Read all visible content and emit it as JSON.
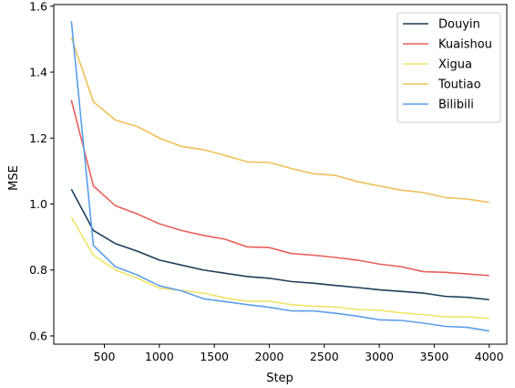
{
  "chart_data": {
    "type": "line",
    "title": "",
    "xlabel": "Step",
    "ylabel": "MSE",
    "xlim": [
      40,
      4160
    ],
    "ylim": [
      0.575,
      1.605
    ],
    "xticks": [
      500,
      1000,
      1500,
      2000,
      2500,
      3000,
      3500,
      4000
    ],
    "yticks": [
      0.6,
      0.8,
      1.0,
      1.2,
      1.4,
      1.6
    ],
    "xtick_labels": [
      "500",
      "1000",
      "1500",
      "2000",
      "2500",
      "3000",
      "3500",
      "4000"
    ],
    "ytick_labels": [
      "0.6",
      "0.8",
      "1.0",
      "1.2",
      "1.4",
      "1.6"
    ],
    "grid": false,
    "legend_position": "top-right",
    "x": [
      200,
      400,
      600,
      800,
      1000,
      1200,
      1400,
      1600,
      1800,
      2000,
      2200,
      2400,
      2600,
      2800,
      3000,
      3200,
      3400,
      3600,
      3800,
      4000
    ],
    "series": [
      {
        "name": "Douyin",
        "color": "#1f3f5b",
        "values": [
          1.045,
          0.92,
          0.88,
          0.857,
          0.83,
          0.815,
          0.8,
          0.79,
          0.78,
          0.775,
          0.765,
          0.76,
          0.753,
          0.747,
          0.74,
          0.735,
          0.73,
          0.72,
          0.717,
          0.71
        ]
      },
      {
        "name": "Kuaishou",
        "color": "#e8605a",
        "values": [
          1.315,
          1.055,
          0.995,
          0.97,
          0.94,
          0.92,
          0.905,
          0.893,
          0.87,
          0.868,
          0.85,
          0.845,
          0.838,
          0.83,
          0.818,
          0.81,
          0.795,
          0.793,
          0.788,
          0.783
        ]
      },
      {
        "name": "Xigua",
        "color": "#f1e36a",
        "values": [
          0.96,
          0.845,
          0.8,
          0.775,
          0.745,
          0.738,
          0.73,
          0.715,
          0.705,
          0.705,
          0.695,
          0.69,
          0.688,
          0.68,
          0.678,
          0.67,
          0.665,
          0.658,
          0.658,
          0.653
        ]
      },
      {
        "name": "Toutiao",
        "color": "#f0c05a",
        "values": [
          1.505,
          1.31,
          1.255,
          1.235,
          1.2,
          1.175,
          1.165,
          1.147,
          1.128,
          1.126,
          1.108,
          1.092,
          1.087,
          1.068,
          1.055,
          1.042,
          1.035,
          1.02,
          1.015,
          1.005
        ]
      },
      {
        "name": "Bilibili",
        "color": "#5b9ee8",
        "x": [
          200,
          400,
          600,
          800,
          1000,
          1200,
          1400,
          1600,
          1800,
          2000,
          2200,
          2400,
          2600,
          2800,
          3000,
          3200,
          3400,
          3600,
          3800,
          4000
        ],
        "values": [
          1.555,
          0.875,
          0.81,
          0.785,
          0.752,
          0.737,
          0.713,
          0.704,
          0.695,
          0.687,
          0.676,
          0.676,
          0.669,
          0.66,
          0.649,
          0.647,
          0.639,
          0.629,
          0.626,
          0.615
        ]
      }
    ]
  }
}
